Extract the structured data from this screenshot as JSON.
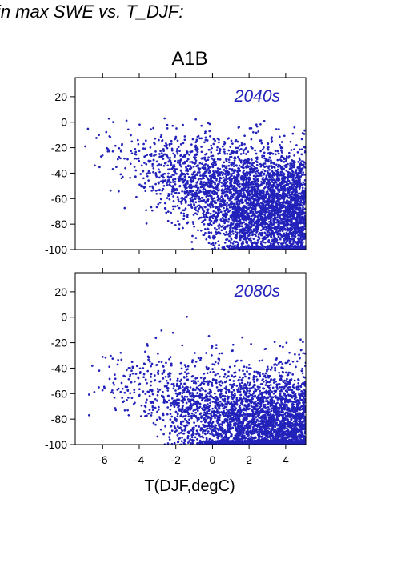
{
  "page": {
    "title": "in max SWE vs. T_DJF:"
  },
  "chart_data": [
    {
      "type": "scatter",
      "title": "A1B",
      "annotation": "2040s",
      "xlabel": "",
      "ylabel": "",
      "xlim": [
        -7.5,
        5.1
      ],
      "ylim": [
        -100,
        35
      ],
      "xticks": [],
      "yticks": [
        20,
        0,
        -20,
        -40,
        -60,
        -80,
        -100
      ],
      "grid": false,
      "color": "#2222bb",
      "point_count": 4200,
      "distribution": {
        "dense_x_range": [
          -2,
          5
        ],
        "dense_y_center": -68,
        "sparse_left_y_center": -25,
        "max_y": 4
      }
    },
    {
      "type": "scatter",
      "title": "",
      "annotation": "2080s",
      "xlabel": "T(DJF,degC)",
      "ylabel": "",
      "xlim": [
        -7.5,
        5.1
      ],
      "ylim": [
        -100,
        35
      ],
      "xticks": [
        -6,
        -4,
        -2,
        0,
        2,
        4
      ],
      "yticks": [
        20,
        0,
        -20,
        -40,
        -60,
        -80,
        -100
      ],
      "grid": false,
      "color": "#2222bb",
      "point_count": 4200,
      "distribution": {
        "dense_x_range": [
          -2,
          5
        ],
        "dense_y_center": -90,
        "sparse_left_y_center": -50,
        "max_y": 7
      }
    }
  ]
}
